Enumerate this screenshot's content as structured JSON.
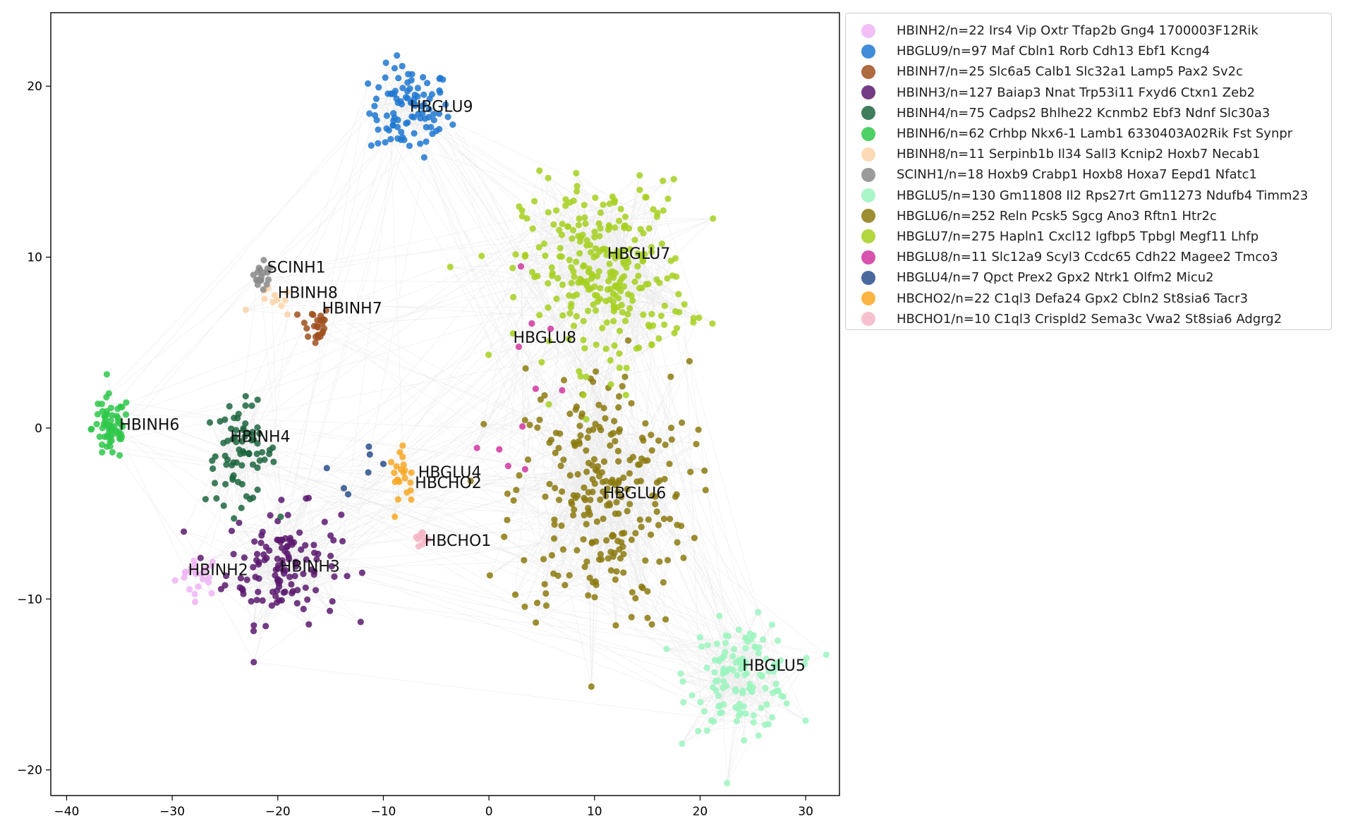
{
  "chart_data": {
    "type": "scatter",
    "title": "",
    "xlabel": "",
    "ylabel": "",
    "xlim": [
      -41.5,
      33.2
    ],
    "ylim": [
      -21.5,
      24.3
    ],
    "xticks": [
      -40,
      -30,
      -20,
      -10,
      0,
      10,
      20,
      30
    ],
    "yticks": [
      -20,
      -10,
      0,
      10,
      20
    ],
    "grid": false,
    "legend_position": "outside-right",
    "edge_color": "#c8c8c8",
    "series": [
      {
        "name": "HBINH2/n=22 Irs4 Vip Oxtr Tfap2b Gng4 1700003F12Rik",
        "label": "HBINH2",
        "color": "#eeb4f5",
        "n": 22,
        "center": [
          -27.5,
          -8.6
        ],
        "spread": [
          1.8,
          1.0
        ],
        "label_pos": [
          -28.5,
          -8.6
        ]
      },
      {
        "name": "HBGLU9/n=97 Maf Cbln1 Rorb Cdh13 Ebf1 Kcng4",
        "label": "HBGLU9",
        "color": "#1f78d1",
        "n": 97,
        "center": [
          -7.5,
          18.5
        ],
        "spread": [
          3.2,
          2.2
        ],
        "label_pos": [
          -7.5,
          18.5
        ]
      },
      {
        "name": "HBINH7/n=25 Slc6a5 Calb1 Slc32a1 Lamp5 Pax2 Sv2c",
        "label": "HBINH7",
        "color": "#a0501e",
        "n": 25,
        "center": [
          -16.5,
          6.0
        ],
        "spread": [
          1.2,
          1.0
        ],
        "label_pos": [
          -15.8,
          6.7
        ]
      },
      {
        "name": "HBINH3/n=127 Baiap3 Nnat Trp53i11 Fxyd6 Ctxn1 Zeb2",
        "label": "HBINH3",
        "color": "#5b1a6e",
        "n": 127,
        "center": [
          -19.5,
          -8.0
        ],
        "spread": [
          4.5,
          2.8
        ],
        "label_pos": [
          -19.8,
          -8.4
        ]
      },
      {
        "name": "HBINH4/n=75 Cadps2 Bhlhe22 Kcnmb2 Ebf3 Ndnf Slc30a3",
        "label": "HBINH4",
        "color": "#1d6640",
        "n": 75,
        "center": [
          -23.5,
          -1.5
        ],
        "spread": [
          2.8,
          2.4
        ],
        "label_pos": [
          -24.5,
          -0.8
        ]
      },
      {
        "name": "HBINH6/n=62 Crhbp Nkx6-1 Lamb1 6330403A02Rik Fst Synpr",
        "label": "HBINH6",
        "color": "#2ec84a",
        "n": 62,
        "center": [
          -35.8,
          0.0
        ],
        "spread": [
          1.5,
          1.6
        ],
        "label_pos": [
          -35.0,
          -0.1
        ]
      },
      {
        "name": "HBINH8/n=11 Serpinb1b Il34 Sall3 Kcnip2 Hoxb7 Necab1",
        "label": "HBINH8",
        "color": "#fbd4a8",
        "n": 11,
        "center": [
          -20.5,
          7.3
        ],
        "spread": [
          1.6,
          0.7
        ],
        "label_pos": [
          -20.0,
          7.6
        ]
      },
      {
        "name": "SCINH1/n=18 Hoxb9 Crabp1 Hoxb8 Hoxa7 Eepd1 Nfatc1",
        "label": "SCINH1",
        "color": "#8a8a8a",
        "n": 18,
        "center": [
          -21.5,
          8.8
        ],
        "spread": [
          0.9,
          0.7
        ],
        "label_pos": [
          -21.0,
          9.1
        ]
      },
      {
        "name": "HBGLU5/n=130 Gm11808 Il2 Rps27rt Gm11273 Ndufb4 Timm23",
        "label": "HBGLU5",
        "color": "#9cf5c0",
        "n": 130,
        "center": [
          24.0,
          -14.5
        ],
        "spread": [
          4.2,
          2.6
        ],
        "label_pos": [
          24.0,
          -14.2
        ]
      },
      {
        "name": "HBGLU6/n=252 Reln Pcsk5 Sgcg Ano3 Rftn1 Htr2c",
        "label": "HBGLU6",
        "color": "#8c7a10",
        "n": 252,
        "center": [
          10.5,
          -4.0
        ],
        "spread": [
          7.0,
          6.5
        ],
        "label_pos": [
          10.8,
          -4.1
        ]
      },
      {
        "name": "HBGLU7/n=275 Hapln1 Cxcl12 Igfbp5 Tpbgl Megf11 Lhfp",
        "label": "HBGLU7",
        "color": "#a6d020",
        "n": 275,
        "center": [
          11.0,
          9.0
        ],
        "spread": [
          6.5,
          4.5
        ],
        "label_pos": [
          11.2,
          9.9
        ]
      },
      {
        "name": "HBGLU8/n=11 Slc12a9 Scyl3 Ccdc65 Cdh22 Magee2 Tmco3",
        "label": "HBGLU8",
        "color": "#d0359f",
        "n": 11,
        "center": [
          4.0,
          3.5
        ],
        "spread": [
          4.0,
          4.5
        ],
        "label_pos": [
          2.3,
          5.0
        ]
      },
      {
        "name": "HBGLU4/n=7 Qpct Prex2 Gpx2 Ntrk1 Olfm2 Micu2",
        "label": "HBGLU4",
        "color": "#2a4f8c",
        "n": 7,
        "center": [
          -14.5,
          -2.5
        ],
        "spread": [
          4.5,
          1.5
        ],
        "label_pos": [
          -6.7,
          -2.9
        ]
      },
      {
        "name": "HBCHO2/n=22 C1ql3 Defa24 Gpx2 Cbln2 St8sia6 Tacr3",
        "label": "HBCHO2",
        "color": "#f9a825",
        "n": 22,
        "center": [
          -8.0,
          -2.9
        ],
        "spread": [
          1.2,
          1.3
        ],
        "label_pos": [
          -7.0,
          -3.5
        ]
      },
      {
        "name": "HBCHO1/n=10 C1ql3 Crispld2 Sema3c Vwa2 St8sia6 Adgrg2",
        "label": "HBCHO1",
        "color": "#f6b5c4",
        "n": 10,
        "center": [
          -6.5,
          -6.5
        ],
        "spread": [
          0.6,
          0.6
        ],
        "label_pos": [
          -6.1,
          -6.9
        ]
      }
    ]
  }
}
